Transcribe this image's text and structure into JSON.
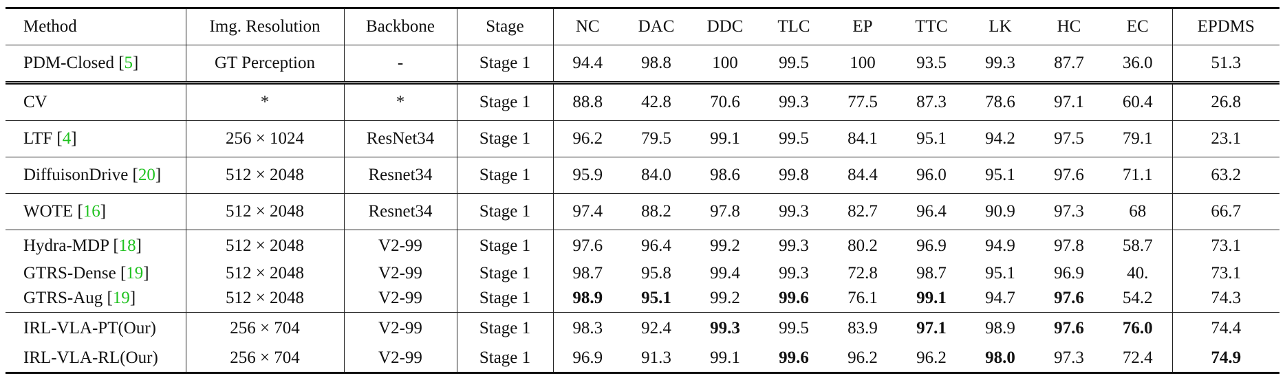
{
  "headers": [
    "Method",
    "Img. Resolution",
    "Backbone",
    "Stage",
    "NC",
    "DAC",
    "DDC",
    "TLC",
    "EP",
    "TTC",
    "LK",
    "HC",
    "EC",
    "EPDMS"
  ],
  "groups": [
    [
      {
        "name": "PDM-Closed",
        "cite": "5",
        "res": "GT Perception",
        "backbone": "-",
        "stage": "Stage 1",
        "vals": [
          "94.4",
          "98.8",
          "100",
          "99.5",
          "100",
          "93.5",
          "99.3",
          "87.7",
          "36.0",
          "51.3"
        ],
        "bold": []
      }
    ],
    [
      {
        "name": "CV",
        "cite": "",
        "res": "*",
        "backbone": "*",
        "stage": "Stage 1",
        "vals": [
          "88.8",
          "42.8",
          "70.6",
          "99.3",
          "77.5",
          "87.3",
          "78.6",
          "97.1",
          "60.4",
          "26.8"
        ],
        "bold": []
      }
    ],
    [
      {
        "name": "LTF",
        "cite": "4",
        "res": "256 × 1024",
        "backbone": "ResNet34",
        "stage": "Stage 1",
        "vals": [
          "96.2",
          "79.5",
          "99.1",
          "99.5",
          "84.1",
          "95.1",
          "94.2",
          "97.5",
          "79.1",
          "23.1"
        ],
        "bold": []
      }
    ],
    [
      {
        "name": "DiffuisonDrive",
        "cite": "20",
        "res": "512 × 2048",
        "backbone": "Resnet34",
        "stage": "Stage 1",
        "vals": [
          "95.9",
          "84.0",
          "98.6",
          "99.8",
          "84.4",
          "96.0",
          "95.1",
          "97.6",
          "71.1",
          "63.2"
        ],
        "bold": []
      }
    ],
    [
      {
        "name": "WOTE",
        "cite": "16",
        "res": "512 × 2048",
        "backbone": "Resnet34",
        "stage": "Stage 1",
        "vals": [
          "97.4",
          "88.2",
          "97.8",
          "99.3",
          "82.7",
          "96.4",
          "90.9",
          "97.3",
          "68",
          "66.7"
        ],
        "bold": []
      }
    ],
    [
      {
        "name": "Hydra-MDP",
        "cite": "18",
        "res": "512 × 2048",
        "backbone": "V2-99",
        "stage": "Stage 1",
        "vals": [
          "97.6",
          "96.4",
          "99.2",
          "99.3",
          "80.2",
          "96.9",
          "94.9",
          "97.8",
          "58.7",
          "73.1"
        ],
        "bold": []
      },
      {
        "name": "GTRS-Dense",
        "cite": "19",
        "res": "512 × 2048",
        "backbone": "V2-99",
        "stage": "Stage 1",
        "vals": [
          "98.7",
          "95.8",
          "99.4",
          "99.3",
          "72.8",
          "98.7",
          "95.1",
          "96.9",
          "40.",
          "73.1"
        ],
        "bold": []
      },
      {
        "name": "GTRS-Aug",
        "cite": "19",
        "res": "512 × 2048",
        "backbone": "V2-99",
        "stage": "Stage 1",
        "vals": [
          "98.9",
          "95.1",
          "99.2",
          "99.6",
          "76.1",
          "99.1",
          "94.7",
          "97.6",
          "54.2",
          "74.3"
        ],
        "bold": [
          0,
          1,
          3,
          5,
          7
        ]
      }
    ],
    [
      {
        "name": "IRL-VLA-PT(Our)",
        "cite": "",
        "res": "256 × 704",
        "backbone": "V2-99",
        "stage": "Stage 1",
        "vals": [
          "98.3",
          "92.4",
          "99.3",
          "99.5",
          "83.9",
          "97.1",
          "98.9",
          "97.6",
          "76.0",
          "74.4"
        ],
        "bold": [
          2,
          5,
          7,
          8
        ]
      },
      {
        "name": "IRL-VLA-RL(Our)",
        "cite": "",
        "res": "256 × 704",
        "backbone": "V2-99",
        "stage": "Stage 1",
        "vals": [
          "96.9",
          "91.3",
          "99.1",
          "99.6",
          "96.2",
          "96.2",
          "98.0",
          "97.3",
          "72.4",
          "74.9"
        ],
        "bold": [
          3,
          6,
          9
        ]
      }
    ]
  ]
}
